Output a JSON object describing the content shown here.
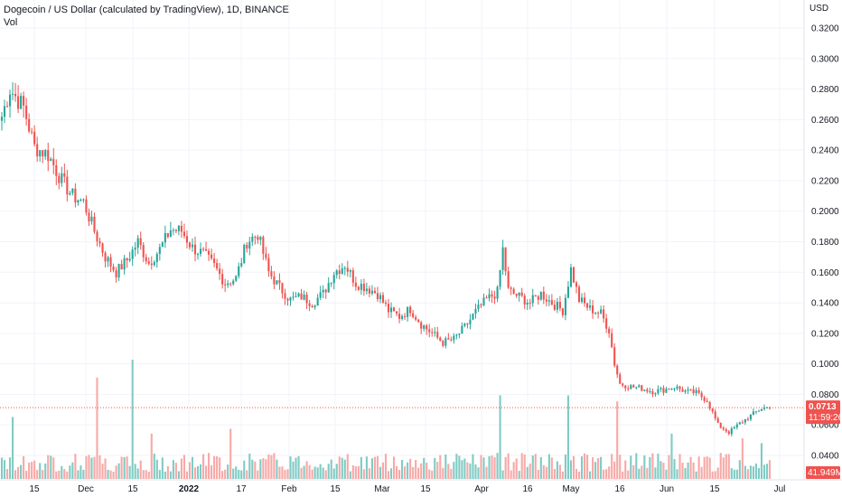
{
  "header": {
    "title": "Dogecoin / US Dollar (calculated by TradingView), 1D, BINANCE",
    "vol_label": "Vol"
  },
  "chart_data": {
    "type": "candlestick",
    "title": "Dogecoin / US Dollar (calculated by TradingView), 1D, BINANCE",
    "currency": "USD",
    "ylim": [
      0.018,
      0.328
    ],
    "y_ticks": [
      "0.3200",
      "0.3000",
      "0.2800",
      "0.2600",
      "0.2400",
      "0.2200",
      "0.2000",
      "0.1800",
      "0.1600",
      "0.1400",
      "0.1200",
      "0.1000",
      "0.0800",
      "0.0600",
      "0.0400"
    ],
    "x_ticks": [
      "15",
      "Dec",
      "15",
      "2022",
      "17",
      "Feb",
      "15",
      "Mar",
      "15",
      "Apr",
      "16",
      "May",
      "16",
      "Jun",
      "15",
      "Jul"
    ],
    "last_price": "0.0713",
    "countdown": "11:59:26",
    "volume_label": "41.949M",
    "colors": {
      "up": "#26a69a",
      "down": "#ef5350",
      "up_vol": "#80cbc4",
      "down_vol": "#f7a9a7",
      "grid": "#f0f3fa",
      "price_line": "#ef5350"
    },
    "close_knots": [
      [
        0,
        0.262
      ],
      [
        3,
        0.28
      ],
      [
        8,
        0.268
      ],
      [
        12,
        0.242
      ],
      [
        17,
        0.237
      ],
      [
        22,
        0.22
      ],
      [
        26,
        0.21
      ],
      [
        30,
        0.206
      ],
      [
        34,
        0.187
      ],
      [
        38,
        0.17
      ],
      [
        42,
        0.16
      ],
      [
        46,
        0.168
      ],
      [
        50,
        0.18
      ],
      [
        54,
        0.166
      ],
      [
        58,
        0.175
      ],
      [
        62,
        0.188
      ],
      [
        66,
        0.187
      ],
      [
        70,
        0.176
      ],
      [
        74,
        0.172
      ],
      [
        78,
        0.164
      ],
      [
        82,
        0.153
      ],
      [
        86,
        0.156
      ],
      [
        90,
        0.18
      ],
      [
        94,
        0.185
      ],
      [
        98,
        0.16
      ],
      [
        102,
        0.15
      ],
      [
        106,
        0.142
      ],
      [
        110,
        0.144
      ],
      [
        114,
        0.14
      ],
      [
        118,
        0.146
      ],
      [
        122,
        0.16
      ],
      [
        126,
        0.165
      ],
      [
        130,
        0.153
      ],
      [
        134,
        0.15
      ],
      [
        138,
        0.146
      ],
      [
        142,
        0.135
      ],
      [
        146,
        0.131
      ],
      [
        150,
        0.136
      ],
      [
        154,
        0.126
      ],
      [
        158,
        0.12
      ],
      [
        162,
        0.114
      ],
      [
        166,
        0.116
      ],
      [
        170,
        0.124
      ],
      [
        174,
        0.134
      ],
      [
        178,
        0.142
      ],
      [
        182,
        0.147
      ],
      [
        184,
        0.175
      ],
      [
        186,
        0.148
      ],
      [
        190,
        0.144
      ],
      [
        194,
        0.14
      ],
      [
        198,
        0.146
      ],
      [
        202,
        0.14
      ],
      [
        206,
        0.135
      ],
      [
        209,
        0.162
      ],
      [
        212,
        0.142
      ],
      [
        216,
        0.136
      ],
      [
        220,
        0.133
      ],
      [
        223,
        0.122
      ],
      [
        225,
        0.1
      ],
      [
        227,
        0.087
      ],
      [
        231,
        0.085
      ],
      [
        235,
        0.084
      ],
      [
        239,
        0.082
      ],
      [
        243,
        0.083
      ],
      [
        247,
        0.085
      ],
      [
        251,
        0.082
      ],
      [
        255,
        0.081
      ],
      [
        259,
        0.076
      ],
      [
        263,
        0.06
      ],
      [
        267,
        0.055
      ],
      [
        271,
        0.061
      ],
      [
        275,
        0.066
      ],
      [
        279,
        0.071
      ],
      [
        282,
        0.0713
      ]
    ],
    "volume_spikes": {
      "4": 0.52,
      "35": 0.85,
      "48": 1.0,
      "55": 0.38,
      "84": 0.42,
      "183": 0.7,
      "208": 0.7,
      "226": 0.65,
      "246": 0.38,
      "272": 0.34,
      "279": 0.3
    },
    "volume_max_millions": 280
  }
}
